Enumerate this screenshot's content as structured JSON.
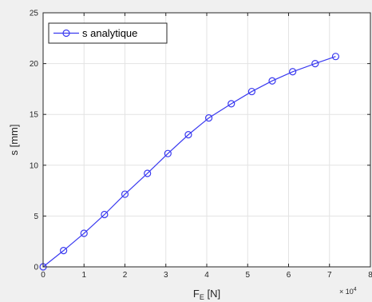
{
  "chart_data": {
    "type": "line",
    "x": [
      0,
      5000,
      10000,
      15000,
      20000,
      25500,
      30500,
      35500,
      40500,
      46000,
      51000,
      56000,
      61000,
      66500,
      71500
    ],
    "series": [
      {
        "name": "s analytique",
        "values": [
          0,
          1.6,
          3.3,
          5.15,
          7.15,
          9.2,
          11.15,
          13.0,
          14.65,
          16.05,
          17.25,
          18.3,
          19.2,
          20.0,
          20.7
        ],
        "color": "#3a3af0",
        "marker": "circle"
      }
    ],
    "xlabel": "F",
    "xlabel_sub": "E",
    "xlabel_unit": " [N]",
    "ylabel": "s [mm]",
    "xlim": [
      0,
      80000
    ],
    "ylim": [
      0,
      25
    ],
    "x_ticks": [
      0,
      10000,
      20000,
      30000,
      40000,
      50000,
      60000,
      70000,
      80000
    ],
    "x_tick_labels": [
      "0",
      "1",
      "2",
      "3",
      "4",
      "5",
      "6",
      "7",
      "8"
    ],
    "x_exponent_base": "× 10",
    "x_exponent_power": "4",
    "y_ticks": [
      0,
      5,
      10,
      15,
      20,
      25
    ],
    "y_tick_labels": [
      "0",
      "5",
      "10",
      "15",
      "20",
      "25"
    ],
    "grid": true,
    "legend_position": "top-left"
  }
}
